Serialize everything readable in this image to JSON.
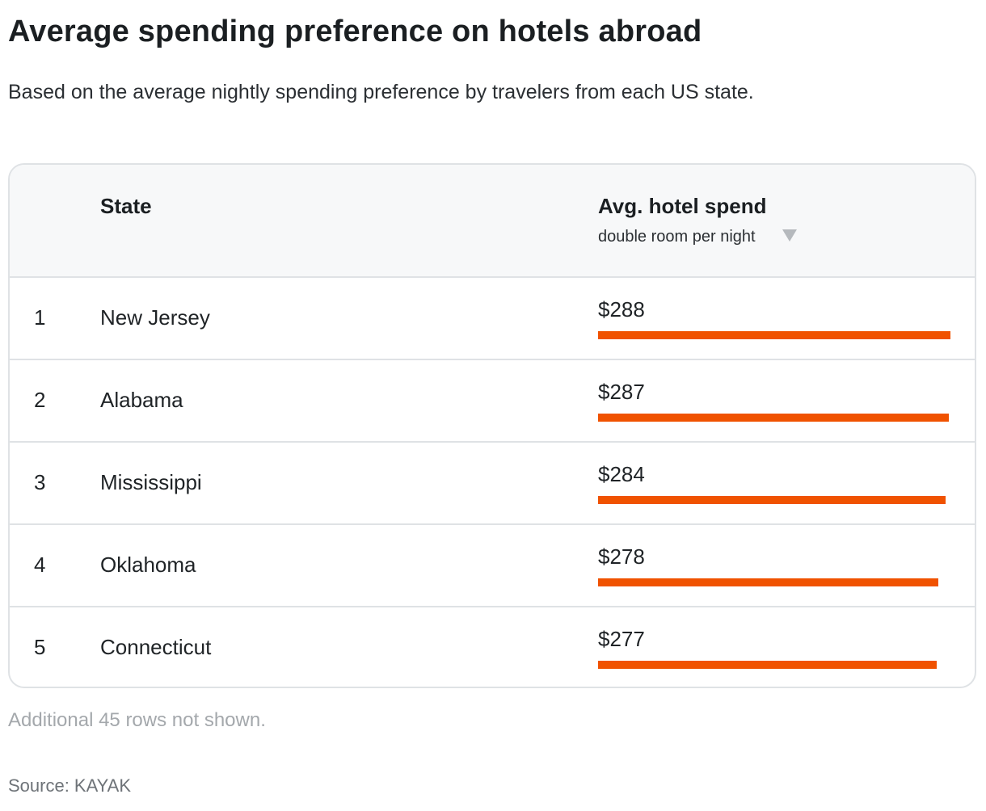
{
  "title": "Average spending preference on hotels abroad",
  "subtitle": "Based on the average nightly spending preference by travelers from each US state.",
  "table": {
    "col_state": "State",
    "col_spend": "Avg. hotel spend",
    "col_spend_sub": "double room per night",
    "sort_icon": "sort-descending-icon"
  },
  "note": "Additional 45 rows not shown.",
  "source": "Source: KAYAK",
  "colors": {
    "bar": "#f05200",
    "header_bg": "#f7f8f9",
    "border": "#dfe2e5"
  },
  "chart_data": {
    "type": "table",
    "columns": [
      "",
      "State",
      "Avg. hotel spend"
    ],
    "rows": [
      {
        "rank": "1",
        "state": "New Jersey",
        "label": "$288",
        "value": 288
      },
      {
        "rank": "2",
        "state": "Alabama",
        "label": "$287",
        "value": 287
      },
      {
        "rank": "3",
        "state": "Mississippi",
        "label": "$284",
        "value": 284
      },
      {
        "rank": "4",
        "state": "Oklahoma",
        "label": "$278",
        "value": 278
      },
      {
        "rank": "5",
        "state": "Connecticut",
        "label": "$277",
        "value": 277
      }
    ],
    "bar_max": 288
  }
}
